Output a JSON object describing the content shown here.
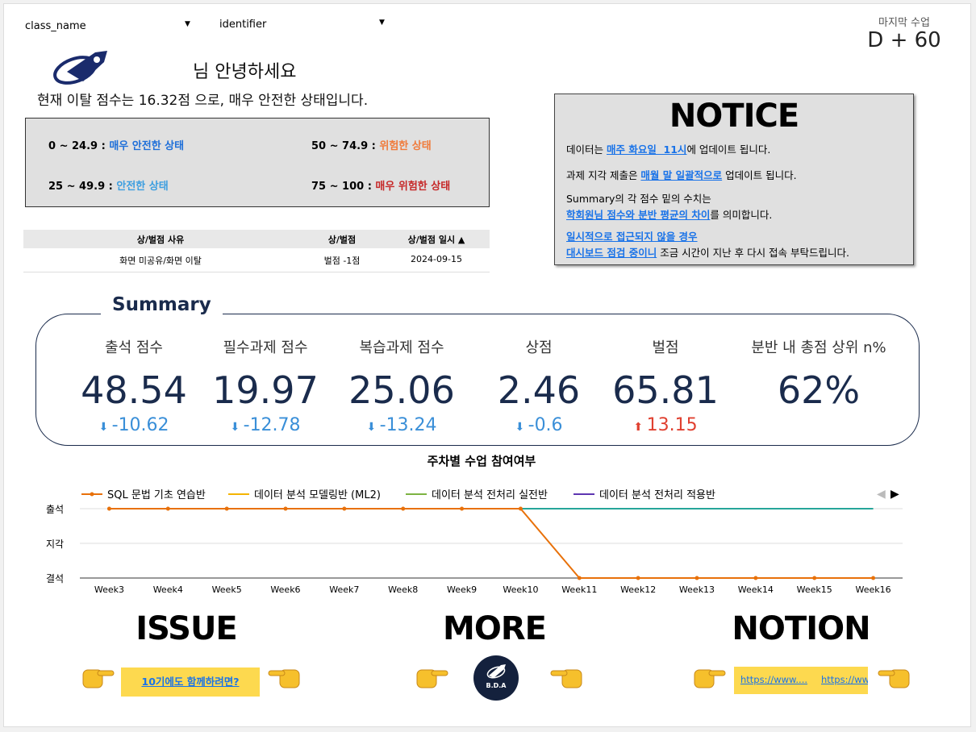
{
  "filters": [
    "class_name",
    "identifier"
  ],
  "last_class": {
    "label": "마지막 수업",
    "value": "D + 60"
  },
  "greeting": "님 안녕하세요",
  "status_text": "현재 이탈 점수는 16.32점 으로, 매우 안전한 상태입니다.",
  "levels": [
    {
      "range": "0 ~ 24.9 : ",
      "label": "매우 안전한 상태"
    },
    {
      "range": "50 ~ 74.9 : ",
      "label": "위험한 상태"
    },
    {
      "range": "25 ~ 49.9 : ",
      "label": "안전한 상태"
    },
    {
      "range": "75 ~ 100 : ",
      "label": "매우 위험한 상태"
    }
  ],
  "table": {
    "headers": [
      "상/벌점 사유",
      "상/벌점",
      "상/벌점 일시 ▲"
    ],
    "rows": [
      [
        "화면 미공유/화면 이탈",
        "벌점 -1점",
        "2024-09-15"
      ]
    ]
  },
  "notice": {
    "title": "NOTICE",
    "paragraphs": [
      [
        "데이터는 ",
        "매주 화요일  11시",
        "에 업데이트 됩니다."
      ],
      [
        "과제 지각 제출은 ",
        "매월 말 일괄적으로",
        " 업데이트 됩니다."
      ],
      [
        "Summary의 각 점수 밑의 수치는"
      ],
      [
        "학회원님 점수와 분반 평균의 차이",
        "를 의미합니다."
      ],
      [
        "일시적으로 접근되지 않을 경우"
      ],
      [
        "대시보드 점검 중이니",
        " 조금 시간이 지난 후 다시 접속 부탁드립니다."
      ]
    ]
  },
  "summary": {
    "title": "Summary",
    "metrics": [
      {
        "label": "출석 점수",
        "value": 48.54,
        "delta": -10.62
      },
      {
        "label": "필수과제 점수",
        "value": 19.97,
        "delta": -12.78
      },
      {
        "label": "복습과제 점수",
        "value": 25.06,
        "delta": -13.24
      },
      {
        "label": "상점",
        "value": 2.46,
        "delta": -0.6
      },
      {
        "label": "벌점",
        "value": 65.81,
        "delta": 13.15
      },
      {
        "label": "분반 내 총점 상위 n%",
        "value": "62%"
      }
    ]
  },
  "chart_data": {
    "type": "line",
    "title": "주차별 수업 참여여부",
    "categories": [
      "Week3",
      "Week4",
      "Week5",
      "Week6",
      "Week7",
      "Week8",
      "Week9",
      "Week10",
      "Week11",
      "Week12",
      "Week13",
      "Week14",
      "Week15",
      "Week16"
    ],
    "series": [
      {
        "name": "SQL 문법 기초 연습반",
        "color": "#e8710a",
        "values": [
          2,
          2,
          2,
          2,
          2,
          2,
          2,
          2,
          0,
          0,
          0,
          0,
          0,
          0
        ]
      },
      {
        "name": "데이터 분석 모델링반 (ML2)",
        "color": "#f4b400",
        "values": [
          null,
          null,
          null,
          null,
          null,
          null,
          null,
          null,
          null,
          null,
          null,
          null,
          null,
          null
        ]
      },
      {
        "name": "데이터 분석 전처리 실전반",
        "color": "#7cb342",
        "values": [
          null,
          null,
          null,
          null,
          null,
          null,
          null,
          null,
          null,
          null,
          null,
          null,
          null,
          null
        ]
      },
      {
        "name": "데이터 분석 전처리 적용반",
        "color": "#5e35b1",
        "values": [
          null,
          null,
          null,
          null,
          null,
          null,
          null,
          null,
          null,
          null,
          null,
          null,
          null,
          null
        ]
      }
    ],
    "ylim": [
      0,
      2
    ],
    "yticks": [
      {
        "value": 2,
        "label": "출석"
      },
      {
        "value": 1,
        "label": "지각"
      },
      {
        "value": 0,
        "label": "결석"
      }
    ],
    "grid": true
  },
  "links": {
    "headings": [
      "ISSUE",
      "MORE",
      "NOTION"
    ],
    "issue_button": "10기에도 함께하려면?",
    "logo_text": "B.D.A",
    "notion_links": [
      "https://www....",
      "https://ww"
    ]
  }
}
